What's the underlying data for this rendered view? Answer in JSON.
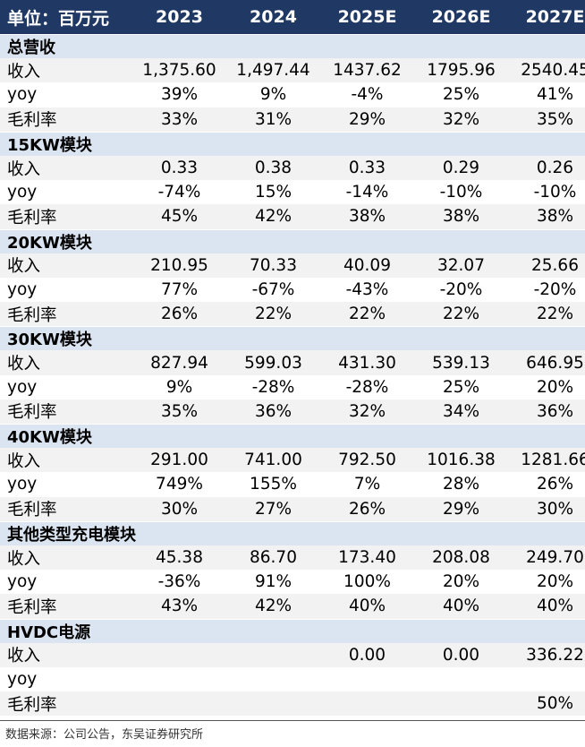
{
  "header": {
    "cells": [
      "单位：百万元",
      "2023",
      "2024",
      "2025E",
      "2026E",
      "2027E"
    ]
  },
  "sections": [
    {
      "title": "总营收",
      "rows": [
        {
          "label": "收入",
          "values": [
            "1,375.60",
            "1,497.44",
            "1437.62",
            "1795.96",
            "2540.45"
          ]
        },
        {
          "label": "yoy",
          "values": [
            "39%",
            "9%",
            "-4%",
            "25%",
            "41%"
          ]
        },
        {
          "label": "毛利率",
          "values": [
            "33%",
            "31%",
            "29%",
            "32%",
            "35%"
          ]
        }
      ]
    },
    {
      "title": "15KW模块",
      "rows": [
        {
          "label": "收入",
          "values": [
            "0.33",
            "0.38",
            "0.33",
            "0.29",
            "0.26"
          ]
        },
        {
          "label": "yoy",
          "values": [
            "-74%",
            "15%",
            "-14%",
            "-10%",
            "-10%"
          ]
        },
        {
          "label": "毛利率",
          "values": [
            "45%",
            "42%",
            "38%",
            "38%",
            "38%"
          ]
        }
      ]
    },
    {
      "title": "20KW模块",
      "rows": [
        {
          "label": "收入",
          "values": [
            "210.95",
            "70.33",
            "40.09",
            "32.07",
            "25.66"
          ]
        },
        {
          "label": "yoy",
          "values": [
            "77%",
            "-67%",
            "-43%",
            "-20%",
            "-20%"
          ]
        },
        {
          "label": "毛利率",
          "values": [
            "26%",
            "22%",
            "22%",
            "22%",
            "22%"
          ]
        }
      ]
    },
    {
      "title": "30KW模块",
      "rows": [
        {
          "label": "收入",
          "values": [
            "827.94",
            "599.03",
            "431.30",
            "539.13",
            "646.95"
          ]
        },
        {
          "label": "yoy",
          "values": [
            "9%",
            "-28%",
            "-28%",
            "25%",
            "20%"
          ]
        },
        {
          "label": "毛利率",
          "values": [
            "35%",
            "36%",
            "32%",
            "34%",
            "36%"
          ]
        }
      ]
    },
    {
      "title": "40KW模块",
      "rows": [
        {
          "label": "收入",
          "values": [
            "291.00",
            "741.00",
            "792.50",
            "1016.38",
            "1281.66"
          ]
        },
        {
          "label": "yoy",
          "values": [
            "749%",
            "155%",
            "7%",
            "28%",
            "26%"
          ]
        },
        {
          "label": "毛利率",
          "values": [
            "30%",
            "27%",
            "26%",
            "29%",
            "30%"
          ]
        }
      ]
    },
    {
      "title": "其他类型充电模块",
      "rows": [
        {
          "label": "收入",
          "values": [
            "45.38",
            "86.70",
            "173.40",
            "208.08",
            "249.70"
          ]
        },
        {
          "label": "yoy",
          "values": [
            "-36%",
            "91%",
            "100%",
            "20%",
            "20%"
          ]
        },
        {
          "label": "毛利率",
          "values": [
            "43%",
            "42%",
            "40%",
            "40%",
            "40%"
          ]
        }
      ]
    },
    {
      "title": "HVDC电源",
      "rows": [
        {
          "label": "收入",
          "values": [
            null,
            null,
            "0.00",
            "0.00",
            "336.22"
          ]
        },
        {
          "label": "yoy",
          "values": [
            null,
            null,
            null,
            null,
            null
          ]
        },
        {
          "label": "毛利率",
          "values": [
            null,
            null,
            null,
            null,
            "50%"
          ]
        }
      ]
    }
  ],
  "footer": {
    "note": "数据来源：公司公告，东吴证券研究所"
  }
}
